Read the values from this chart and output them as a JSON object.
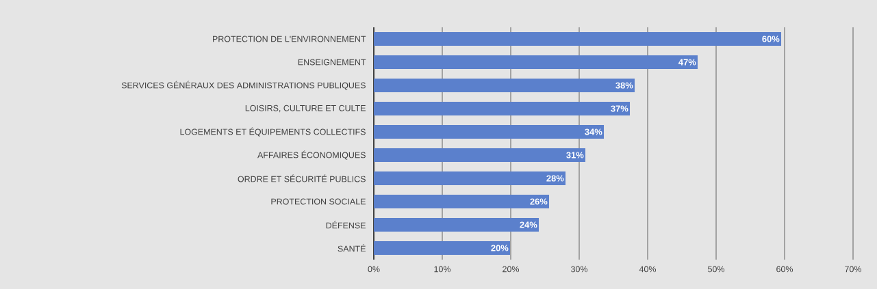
{
  "chart_data": {
    "type": "bar",
    "orientation": "horizontal",
    "categories": [
      "PROTECTION DE L'ENVIRONNEMENT",
      "ENSEIGNEMENT",
      "SERVICES GÉNÉRAUX DES ADMINISTRATIONS PUBLIQUES",
      "LOISIRS, CULTURE ET CULTE",
      "LOGEMENTS ET ÉQUIPEMENTS COLLECTIFS",
      "AFFAIRES ÉCONOMIQUES",
      "ORDRE ET SÉCURITÉ PUBLICS",
      "PROTECTION SOCIALE",
      "DÉFENSE",
      "SANTÉ"
    ],
    "values": [
      59.5,
      47.3,
      38.1,
      37.4,
      33.6,
      30.9,
      28.0,
      25.6,
      24.1,
      19.9
    ],
    "value_labels": [
      "60%",
      "47%",
      "38%",
      "37%",
      "34%",
      "31%",
      "28%",
      "26%",
      "24%",
      "20%"
    ],
    "color": "#5b80cc",
    "xlim": [
      0,
      70
    ],
    "xticks": [
      {
        "value": 0,
        "label": "0%"
      },
      {
        "value": 10,
        "label": "10%"
      },
      {
        "value": 20,
        "label": "20%"
      },
      {
        "value": 30,
        "label": "30%"
      },
      {
        "value": 40,
        "label": "40%"
      },
      {
        "value": 50,
        "label": "50%"
      },
      {
        "value": 60,
        "label": "60%"
      },
      {
        "value": 70,
        "label": "70%"
      }
    ],
    "grid": "x"
  }
}
